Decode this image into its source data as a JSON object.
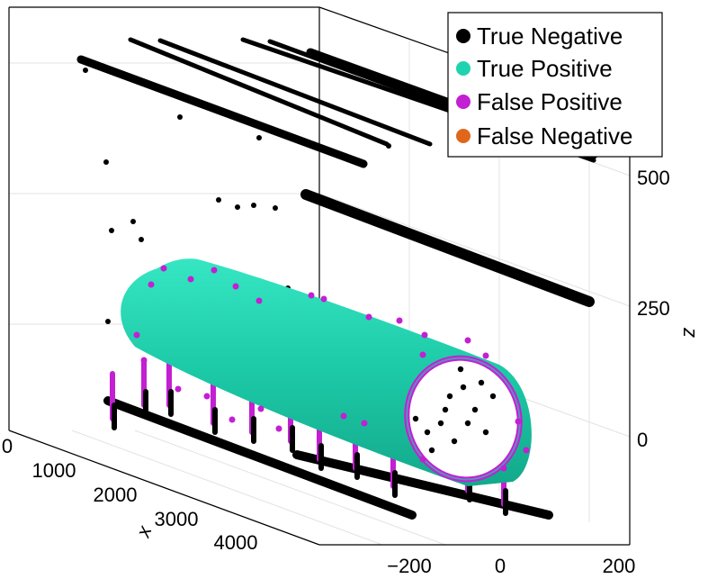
{
  "chart_data": {
    "type": "scatter",
    "projection": "3d",
    "title": "",
    "xlabel": "x",
    "ylabel": "",
    "zlabel": "z",
    "x_ticks": [
      "0",
      "1000",
      "2000",
      "3000",
      "4000"
    ],
    "y_ticks": [
      "−200",
      "0",
      "200"
    ],
    "z_ticks": [
      "0",
      "250",
      "500"
    ],
    "xlim": [
      0,
      4600
    ],
    "ylim": [
      -300,
      220
    ],
    "zlim": [
      -150,
      600
    ],
    "grid": true,
    "legend_position": "top-right",
    "series": [
      {
        "name": "True Negative",
        "color": "#000000"
      },
      {
        "name": "True Positive",
        "color": "#1fd3b0"
      },
      {
        "name": "False Positive",
        "color": "#c31fd3"
      },
      {
        "name": "False Negative",
        "color": "#e0671a"
      }
    ],
    "annotations": "Cylindrical tube of True Positive points with False Positive rim; True Negative points on linear tracks above and below; no False Negative points visible"
  }
}
